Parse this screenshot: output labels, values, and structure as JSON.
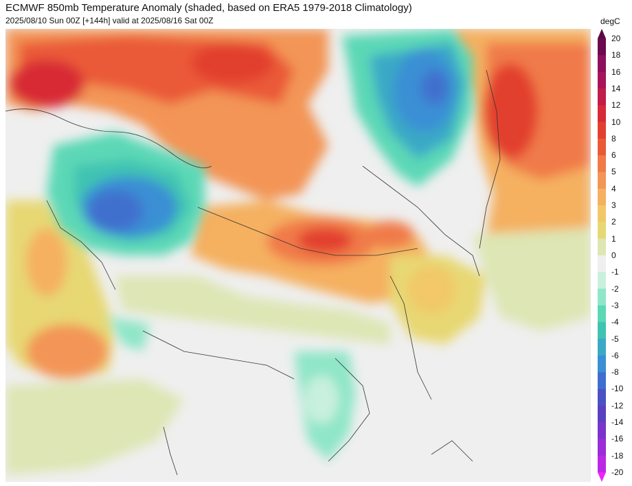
{
  "header": {
    "title": "ECMWF 850mb Temperature Anomaly (shaded, based on ERA5 1979-2018 Climatology)",
    "subtitle": "2025/08/10 Sun 00Z [+144h] valid at 2025/08/16 Sat 00Z"
  },
  "colorbar": {
    "unit": "degC",
    "levels": [
      {
        "label": "20",
        "color": "#6b0a4e"
      },
      {
        "label": "18",
        "color": "#8e0f5b"
      },
      {
        "label": "16",
        "color": "#a8145c"
      },
      {
        "label": "14",
        "color": "#c21c4a"
      },
      {
        "label": "12",
        "color": "#d82a36"
      },
      {
        "label": "10",
        "color": "#e2402e"
      },
      {
        "label": "8",
        "color": "#ea5a37"
      },
      {
        "label": "6",
        "color": "#f07a48"
      },
      {
        "label": "5",
        "color": "#f39556"
      },
      {
        "label": "4",
        "color": "#f5b061"
      },
      {
        "label": "3",
        "color": "#f2c867"
      },
      {
        "label": "2",
        "color": "#e7d873"
      },
      {
        "label": "1",
        "color": "#dde6b4"
      },
      {
        "label": "0",
        "color": "#efefef"
      },
      {
        "label": "-1",
        "color": "#c9f0de"
      },
      {
        "label": "-2",
        "color": "#8fe6c8"
      },
      {
        "label": "-3",
        "color": "#5cd8b6"
      },
      {
        "label": "-4",
        "color": "#3fc3b2"
      },
      {
        "label": "-5",
        "color": "#3aa9c6"
      },
      {
        "label": "-6",
        "color": "#3b8fd4"
      },
      {
        "label": "-8",
        "color": "#3f6fce"
      },
      {
        "label": "-10",
        "color": "#4a52c3"
      },
      {
        "label": "-12",
        "color": "#5a3fc0"
      },
      {
        "label": "-14",
        "color": "#7a34cc"
      },
      {
        "label": "-16",
        "color": "#9a2dd8"
      },
      {
        "label": "-18",
        "color": "#bb28e4"
      },
      {
        "label": "-20",
        "color": "#dd22f0"
      }
    ],
    "top_arrow_color": "#5a0a45",
    "bottom_arrow_color": "#ee22ff"
  }
}
